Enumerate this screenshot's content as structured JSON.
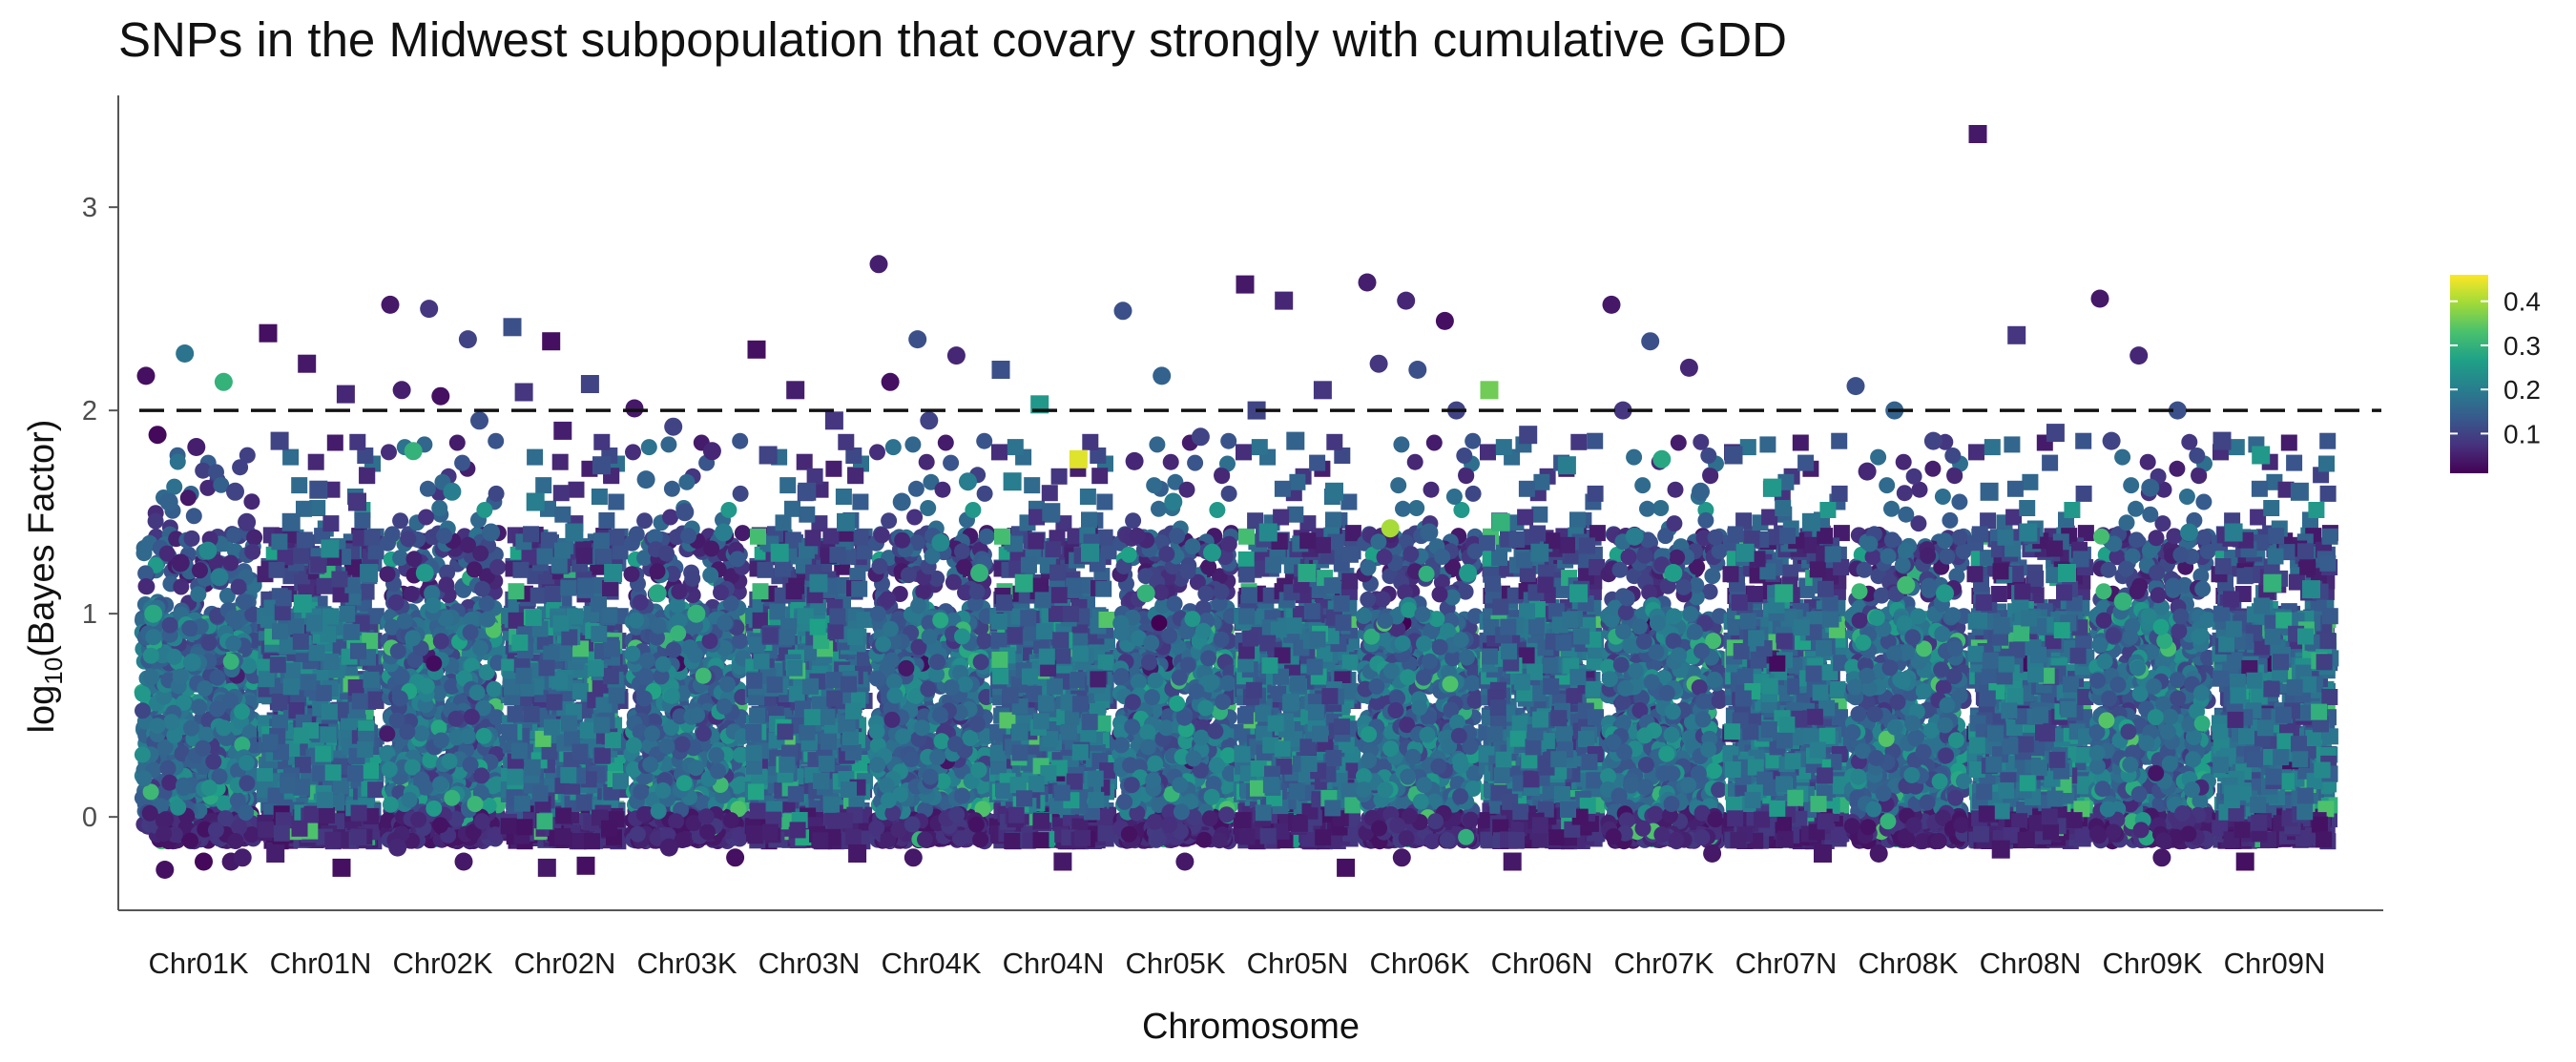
{
  "chart_data": {
    "type": "scatter",
    "title": "SNPs in the Midwest subpopulation that covary strongly with cumulative GDD",
    "xlabel": "Chromosome",
    "ylabel_main": "log",
    "ylabel_sub": "10",
    "ylabel_rest": "(Bayes Factor)",
    "ylim": [
      -0.45,
      3.55
    ],
    "yticks": [
      "0",
      "1",
      "2",
      "3"
    ],
    "threshold": 2,
    "categories": [
      "Chr01K",
      "Chr01N",
      "Chr02K",
      "Chr02N",
      "Chr03K",
      "Chr03N",
      "Chr04K",
      "Chr04N",
      "Chr05K",
      "Chr05N",
      "Chr06K",
      "Chr06N",
      "Chr07K",
      "Chr07N",
      "Chr08K",
      "Chr08N",
      "Chr09K",
      "Chr09N"
    ],
    "marker_shape_by_suffix": {
      "K": "circle",
      "N": "square"
    },
    "colorbar": {
      "palette": [
        "#440154",
        "#46327e",
        "#365c8d",
        "#277f8e",
        "#1fa187",
        "#4ac16d",
        "#a0da39",
        "#fde725"
      ],
      "range": [
        0.01,
        0.46
      ],
      "ticks": [
        "0.1",
        "0.2",
        "0.3",
        "0.4"
      ]
    },
    "background_density": {
      "approx_points_per_chromosome": 900,
      "bulk_y_range": [
        -0.12,
        1.0
      ]
    },
    "series": [
      {
        "chr": "Chr01K",
        "points": [
          [
            2.17,
            0.03
          ],
          [
            2.28,
            0.18
          ],
          [
            2.14,
            0.3
          ],
          [
            1.88,
            0.02
          ],
          [
            1.82,
            0.05
          ],
          [
            1.6,
            0.1
          ],
          [
            1.55,
            0.15
          ],
          [
            1.31,
            0.22
          ],
          [
            1.45,
            0.08
          ],
          [
            1.25,
            0.05
          ],
          [
            1.18,
            0.2
          ],
          [
            1.0,
            0.28
          ],
          [
            0.76,
            0.2
          ],
          [
            -0.22,
            0.04
          ],
          [
            -0.26,
            0.03
          ],
          [
            -0.22,
            0.02
          ],
          [
            -0.2,
            0.05
          ]
        ]
      },
      {
        "chr": "Chr01N",
        "points": [
          [
            2.38,
            0.03
          ],
          [
            2.23,
            0.04
          ],
          [
            2.08,
            0.06
          ],
          [
            1.85,
            0.1
          ],
          [
            1.61,
            0.12
          ],
          [
            1.55,
            0.08
          ],
          [
            1.45,
            0.15
          ],
          [
            1.32,
            0.22
          ],
          [
            1.2,
            0.18
          ],
          [
            1.05,
            0.25
          ],
          [
            -0.25,
            0.03
          ],
          [
            -0.18,
            0.05
          ]
        ]
      },
      {
        "chr": "Chr02K",
        "points": [
          [
            2.52,
            0.04
          ],
          [
            2.5,
            0.08
          ],
          [
            2.35,
            0.1
          ],
          [
            2.1,
            0.05
          ],
          [
            2.07,
            0.03
          ],
          [
            1.95,
            0.12
          ],
          [
            1.8,
            0.3
          ],
          [
            1.6,
            0.2
          ],
          [
            1.4,
            0.15
          ],
          [
            1.2,
            0.25
          ],
          [
            -0.22,
            0.04
          ],
          [
            -0.15,
            0.06
          ]
        ]
      },
      {
        "chr": "Chr02N",
        "points": [
          [
            2.41,
            0.12
          ],
          [
            2.34,
            0.03
          ],
          [
            2.13,
            0.1
          ],
          [
            2.09,
            0.08
          ],
          [
            1.9,
            0.05
          ],
          [
            1.73,
            0.12
          ],
          [
            1.55,
            0.2
          ],
          [
            1.4,
            0.18
          ],
          [
            1.2,
            0.22
          ],
          [
            -0.25,
            0.04
          ],
          [
            -0.24,
            0.03
          ]
        ]
      },
      {
        "chr": "Chr03K",
        "points": [
          [
            2.01,
            0.04
          ],
          [
            1.92,
            0.1
          ],
          [
            1.8,
            0.06
          ],
          [
            1.66,
            0.15
          ],
          [
            1.5,
            0.12
          ],
          [
            1.4,
            0.2
          ],
          [
            1.1,
            0.28
          ],
          [
            1.0,
            0.3
          ],
          [
            -0.2,
            0.03
          ],
          [
            -0.15,
            0.05
          ]
        ]
      },
      {
        "chr": "Chr03N",
        "points": [
          [
            2.3,
            0.03
          ],
          [
            2.1,
            0.05
          ],
          [
            1.95,
            0.08
          ],
          [
            1.78,
            0.1
          ],
          [
            1.6,
            0.12
          ],
          [
            1.45,
            0.18
          ],
          [
            1.3,
            0.25
          ],
          [
            1.15,
            0.2
          ],
          [
            -0.18,
            0.04
          ]
        ]
      },
      {
        "chr": "Chr04K",
        "points": [
          [
            2.72,
            0.05
          ],
          [
            2.35,
            0.12
          ],
          [
            2.27,
            0.06
          ],
          [
            2.14,
            0.03
          ],
          [
            1.95,
            0.1
          ],
          [
            1.65,
            0.2
          ],
          [
            1.55,
            0.15
          ],
          [
            1.35,
            0.22
          ],
          [
            1.2,
            0.3
          ],
          [
            -0.2,
            0.04
          ]
        ]
      },
      {
        "chr": "Chr04N",
        "points": [
          [
            2.2,
            0.12
          ],
          [
            2.03,
            0.25
          ],
          [
            1.76,
            0.44
          ],
          [
            1.65,
            0.2
          ],
          [
            1.5,
            0.15
          ],
          [
            1.3,
            0.22
          ],
          [
            1.15,
            0.28
          ],
          [
            -0.22,
            0.04
          ]
        ]
      },
      {
        "chr": "Chr05K",
        "points": [
          [
            2.49,
            0.12
          ],
          [
            2.17,
            0.15
          ],
          [
            1.87,
            0.1
          ],
          [
            1.75,
            0.06
          ],
          [
            1.55,
            0.2
          ],
          [
            1.3,
            0.25
          ],
          [
            1.1,
            0.3
          ],
          [
            -0.22,
            0.04
          ]
        ]
      },
      {
        "chr": "Chr05N",
        "points": [
          [
            2.62,
            0.04
          ],
          [
            2.54,
            0.06
          ],
          [
            2.1,
            0.08
          ],
          [
            2.0,
            0.1
          ],
          [
            1.85,
            0.15
          ],
          [
            1.6,
            0.18
          ],
          [
            1.4,
            0.22
          ],
          [
            1.2,
            0.28
          ],
          [
            -0.25,
            0.03
          ]
        ]
      },
      {
        "chr": "Chr06K",
        "points": [
          [
            2.63,
            0.05
          ],
          [
            2.54,
            0.06
          ],
          [
            2.44,
            0.03
          ],
          [
            2.23,
            0.08
          ],
          [
            2.2,
            0.12
          ],
          [
            2.0,
            0.1
          ],
          [
            1.42,
            0.4
          ],
          [
            1.4,
            0.15
          ],
          [
            1.2,
            0.25
          ],
          [
            -0.2,
            0.04
          ]
        ]
      },
      {
        "chr": "Chr06N",
        "points": [
          [
            2.1,
            0.36
          ],
          [
            1.88,
            0.1
          ],
          [
            1.73,
            0.2
          ],
          [
            1.45,
            0.3
          ],
          [
            1.3,
            0.18
          ],
          [
            1.1,
            0.25
          ],
          [
            -0.22,
            0.04
          ]
        ]
      },
      {
        "chr": "Chr07K",
        "points": [
          [
            2.52,
            0.04
          ],
          [
            2.34,
            0.12
          ],
          [
            2.21,
            0.06
          ],
          [
            2.0,
            0.08
          ],
          [
            1.76,
            0.28
          ],
          [
            1.6,
            0.15
          ],
          [
            1.38,
            0.2
          ],
          [
            1.2,
            0.26
          ],
          [
            -0.18,
            0.04
          ]
        ]
      },
      {
        "chr": "Chr07N",
        "points": [
          [
            1.78,
            0.12
          ],
          [
            1.62,
            0.25
          ],
          [
            1.45,
            0.18
          ],
          [
            1.3,
            0.22
          ],
          [
            1.1,
            0.28
          ],
          [
            -0.18,
            0.04
          ]
        ]
      },
      {
        "chr": "Chr08K",
        "points": [
          [
            2.12,
            0.12
          ],
          [
            2.0,
            0.15
          ],
          [
            1.85,
            0.1
          ],
          [
            1.7,
            0.06
          ],
          [
            1.14,
            0.32
          ],
          [
            1.1,
            0.25
          ],
          [
            -0.18,
            0.04
          ]
        ]
      },
      {
        "chr": "Chr08N",
        "points": [
          [
            3.36,
            0.04
          ],
          [
            2.37,
            0.08
          ],
          [
            1.89,
            0.1
          ],
          [
            1.6,
            0.15
          ],
          [
            1.4,
            0.2
          ],
          [
            1.2,
            0.26
          ],
          [
            -0.16,
            0.04
          ]
        ]
      },
      {
        "chr": "Chr09K",
        "points": [
          [
            2.55,
            0.04
          ],
          [
            2.27,
            0.06
          ],
          [
            2.0,
            0.12
          ],
          [
            1.85,
            0.1
          ],
          [
            1.62,
            0.15
          ],
          [
            1.4,
            0.2
          ],
          [
            1.06,
            0.3
          ],
          [
            -0.2,
            0.04
          ]
        ]
      },
      {
        "chr": "Chr09N",
        "points": [
          [
            1.85,
            0.1
          ],
          [
            1.78,
            0.25
          ],
          [
            1.6,
            0.15
          ],
          [
            1.4,
            0.2
          ],
          [
            1.15,
            0.3
          ],
          [
            1.12,
            0.22
          ],
          [
            -0.22,
            0.03
          ]
        ]
      }
    ]
  }
}
